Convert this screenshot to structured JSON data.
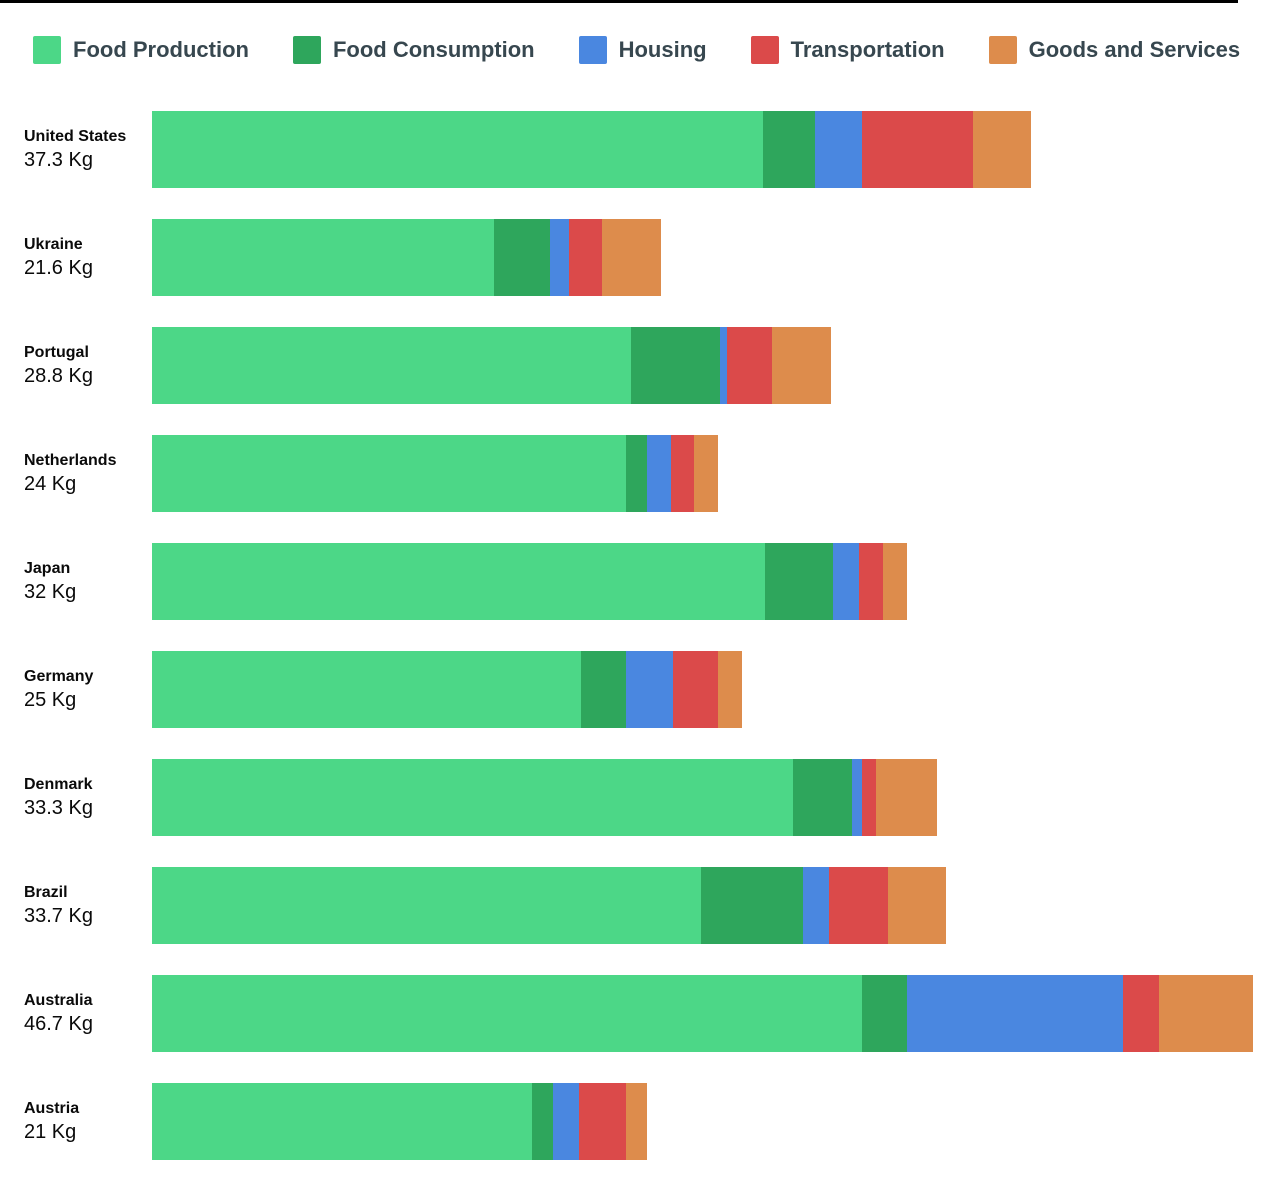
{
  "page": {
    "background": "#ffffff",
    "top_border_color": "#000000",
    "legend_text_color": "#37474F",
    "label_text_color": "#0a0a0a"
  },
  "chart_data": {
    "type": "bar",
    "orientation": "horizontal",
    "stacked": true,
    "unit": "Kg",
    "legend_position": "top",
    "grid": false,
    "xlim": [
      0,
      47
    ],
    "categories": [
      "Food Production",
      "Food Consumption",
      "Housing",
      "Transportation",
      "Goods and Services"
    ],
    "colors": [
      "#4CD787",
      "#2EA65C",
      "#4A87E0",
      "#DB4A4A",
      "#DD8C4C"
    ],
    "countries": [
      {
        "name": "United States",
        "total": 37.3,
        "total_label": "37.3 Kg",
        "values": [
          25.9,
          2.2,
          2.0,
          4.7,
          2.5
        ]
      },
      {
        "name": "Ukraine",
        "total": 21.6,
        "total_label": "21.6 Kg",
        "values": [
          14.5,
          2.4,
          0.8,
          1.4,
          2.5
        ]
      },
      {
        "name": "Portugal",
        "total": 28.8,
        "total_label": "28.8 Kg",
        "values": [
          20.3,
          3.8,
          0.3,
          1.9,
          2.5
        ]
      },
      {
        "name": "Netherlands",
        "total": 24,
        "total_label": "24 Kg",
        "values": [
          20.1,
          0.9,
          1.0,
          1.0,
          1.0
        ]
      },
      {
        "name": "Japan",
        "total": 32,
        "total_label": "32 Kg",
        "values": [
          26.0,
          2.9,
          1.1,
          1.0,
          1.0
        ]
      },
      {
        "name": "Germany",
        "total": 25,
        "total_label": "25 Kg",
        "values": [
          18.2,
          1.9,
          2.0,
          1.9,
          1.0
        ]
      },
      {
        "name": "Denmark",
        "total": 33.3,
        "total_label": "33.3 Kg",
        "values": [
          27.2,
          2.5,
          0.4,
          0.6,
          2.6
        ]
      },
      {
        "name": "Brazil",
        "total": 33.7,
        "total_label": "33.7 Kg",
        "values": [
          23.3,
          4.3,
          1.1,
          2.5,
          2.5
        ]
      },
      {
        "name": "Australia",
        "total": 46.7,
        "total_label": "46.7 Kg",
        "values": [
          30.1,
          1.9,
          9.2,
          1.5,
          4.0
        ]
      },
      {
        "name": "Austria",
        "total": 21,
        "total_label": "21 Kg",
        "values": [
          16.1,
          0.9,
          1.1,
          2.0,
          0.9
        ]
      }
    ]
  }
}
